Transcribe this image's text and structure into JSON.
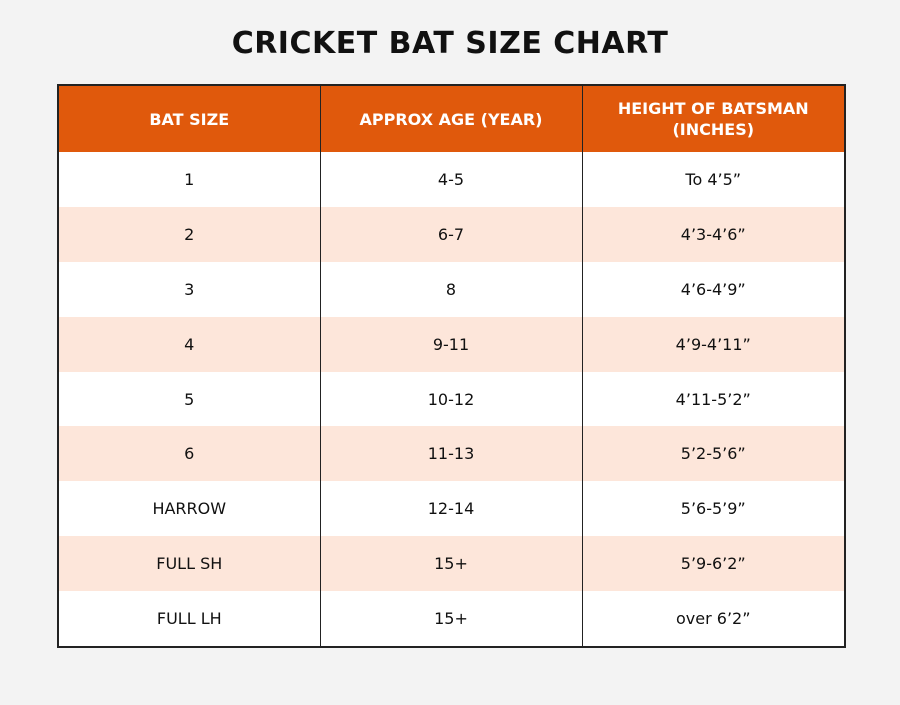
{
  "title": "CRICKET BAT SIZE CHART",
  "colors": {
    "header": "#e0590c",
    "stripe": "#fde6da",
    "background": "#f3f3f3"
  },
  "headers": [
    "BAT SIZE",
    "APPROX AGE (YEAR)",
    "HEIGHT OF BATSMAN (INCHES)"
  ],
  "rows": [
    [
      "1",
      "4-5",
      "To 4’5”"
    ],
    [
      "2",
      "6-7",
      "4’3-4’6”"
    ],
    [
      "3",
      "8",
      "4’6-4’9”"
    ],
    [
      "4",
      "9-11",
      "4’9-4’11”"
    ],
    [
      "5",
      "10-12",
      "4’11-5’2”"
    ],
    [
      "6",
      "11-13",
      "5’2-5’6”"
    ],
    [
      "HARROW",
      "12-14",
      "5’6-5’9”"
    ],
    [
      "FULL SH",
      "15+",
      "5’9-6’2”"
    ],
    [
      "FULL LH",
      "15+",
      "over 6’2”"
    ]
  ]
}
